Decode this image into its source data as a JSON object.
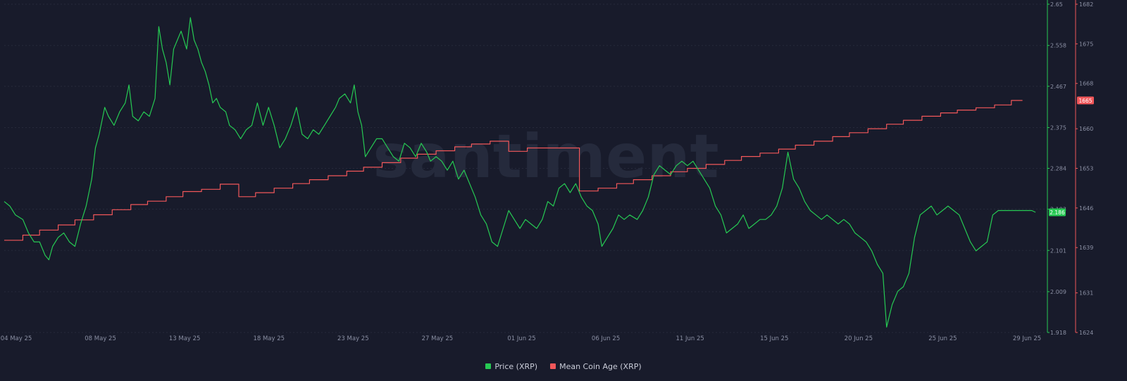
{
  "watermark": "santiment",
  "chart_data": {
    "type": "line",
    "x_ticks": [
      "04 May 25",
      "08 May 25",
      "13 May 25",
      "18 May 25",
      "23 May 25",
      "27 May 25",
      "01 Jun 25",
      "06 Jun 25",
      "11 Jun 25",
      "15 Jun 25",
      "20 Jun 25",
      "25 Jun 25",
      "29 Jun 25"
    ],
    "x_range_days": [
      0,
      56
    ],
    "series": [
      {
        "name": "Price (XRP)",
        "color": "#26c953",
        "axis": "right-inner",
        "ylim": [
          1.918,
          2.65
        ],
        "y_ticks": [
          "1.918",
          "2.009",
          "2.101",
          "2.193",
          "2.284",
          "2.375",
          "2.467",
          "2.558",
          "2.65"
        ],
        "last_value": "2.186",
        "points": [
          [
            0,
            2.21
          ],
          [
            0.3,
            2.2
          ],
          [
            0.6,
            2.18
          ],
          [
            1,
            2.17
          ],
          [
            1.3,
            2.14
          ],
          [
            1.6,
            2.12
          ],
          [
            1.9,
            2.12
          ],
          [
            2.2,
            2.09
          ],
          [
            2.4,
            2.08
          ],
          [
            2.6,
            2.11
          ],
          [
            2.9,
            2.13
          ],
          [
            3.2,
            2.14
          ],
          [
            3.5,
            2.12
          ],
          [
            3.8,
            2.11
          ],
          [
            4.1,
            2.16
          ],
          [
            4.4,
            2.2
          ],
          [
            4.7,
            2.26
          ],
          [
            4.9,
            2.33
          ],
          [
            5.1,
            2.36
          ],
          [
            5.4,
            2.42
          ],
          [
            5.6,
            2.4
          ],
          [
            5.9,
            2.38
          ],
          [
            6.2,
            2.41
          ],
          [
            6.5,
            2.43
          ],
          [
            6.7,
            2.47
          ],
          [
            6.9,
            2.4
          ],
          [
            7.2,
            2.39
          ],
          [
            7.5,
            2.41
          ],
          [
            7.8,
            2.4
          ],
          [
            8.1,
            2.44
          ],
          [
            8.3,
            2.6
          ],
          [
            8.5,
            2.55
          ],
          [
            8.7,
            2.52
          ],
          [
            8.9,
            2.47
          ],
          [
            9.1,
            2.55
          ],
          [
            9.3,
            2.57
          ],
          [
            9.5,
            2.59
          ],
          [
            9.8,
            2.55
          ],
          [
            10,
            2.62
          ],
          [
            10.2,
            2.57
          ],
          [
            10.4,
            2.55
          ],
          [
            10.6,
            2.52
          ],
          [
            10.8,
            2.5
          ],
          [
            11,
            2.47
          ],
          [
            11.2,
            2.43
          ],
          [
            11.4,
            2.44
          ],
          [
            11.6,
            2.42
          ],
          [
            11.9,
            2.41
          ],
          [
            12.1,
            2.38
          ],
          [
            12.4,
            2.37
          ],
          [
            12.7,
            2.35
          ],
          [
            13,
            2.37
          ],
          [
            13.3,
            2.38
          ],
          [
            13.6,
            2.43
          ],
          [
            13.9,
            2.38
          ],
          [
            14.2,
            2.42
          ],
          [
            14.5,
            2.38
          ],
          [
            14.8,
            2.33
          ],
          [
            15.1,
            2.35
          ],
          [
            15.4,
            2.38
          ],
          [
            15.7,
            2.42
          ],
          [
            16,
            2.36
          ],
          [
            16.3,
            2.35
          ],
          [
            16.6,
            2.37
          ],
          [
            16.9,
            2.36
          ],
          [
            17.2,
            2.38
          ],
          [
            17.5,
            2.4
          ],
          [
            17.8,
            2.42
          ],
          [
            18,
            2.44
          ],
          [
            18.3,
            2.45
          ],
          [
            18.6,
            2.43
          ],
          [
            18.8,
            2.47
          ],
          [
            19,
            2.41
          ],
          [
            19.2,
            2.38
          ],
          [
            19.4,
            2.31
          ],
          [
            19.7,
            2.33
          ],
          [
            20,
            2.35
          ],
          [
            20.3,
            2.35
          ],
          [
            20.6,
            2.33
          ],
          [
            20.9,
            2.31
          ],
          [
            21.2,
            2.3
          ],
          [
            21.5,
            2.34
          ],
          [
            21.8,
            2.33
          ],
          [
            22.1,
            2.31
          ],
          [
            22.4,
            2.34
          ],
          [
            22.7,
            2.32
          ],
          [
            22.9,
            2.3
          ],
          [
            23.2,
            2.31
          ],
          [
            23.5,
            2.3
          ],
          [
            23.8,
            2.28
          ],
          [
            24.1,
            2.3
          ],
          [
            24.4,
            2.26
          ],
          [
            24.7,
            2.28
          ],
          [
            25,
            2.25
          ],
          [
            25.3,
            2.22
          ],
          [
            25.6,
            2.18
          ],
          [
            25.9,
            2.16
          ],
          [
            26.2,
            2.12
          ],
          [
            26.5,
            2.11
          ],
          [
            26.8,
            2.15
          ],
          [
            27.1,
            2.19
          ],
          [
            27.4,
            2.17
          ],
          [
            27.7,
            2.15
          ],
          [
            28,
            2.17
          ],
          [
            28.3,
            2.16
          ],
          [
            28.6,
            2.15
          ],
          [
            28.9,
            2.17
          ],
          [
            29.2,
            2.21
          ],
          [
            29.5,
            2.2
          ],
          [
            29.8,
            2.24
          ],
          [
            30.1,
            2.25
          ],
          [
            30.4,
            2.23
          ],
          [
            30.7,
            2.25
          ],
          [
            31,
            2.22
          ],
          [
            31.3,
            2.2
          ],
          [
            31.6,
            2.19
          ],
          [
            31.9,
            2.16
          ],
          [
            32.1,
            2.11
          ],
          [
            32.4,
            2.13
          ],
          [
            32.7,
            2.15
          ],
          [
            33,
            2.18
          ],
          [
            33.3,
            2.17
          ],
          [
            33.6,
            2.18
          ],
          [
            34,
            2.17
          ],
          [
            34.3,
            2.19
          ],
          [
            34.6,
            2.22
          ],
          [
            34.9,
            2.27
          ],
          [
            35.2,
            2.29
          ],
          [
            35.5,
            2.28
          ],
          [
            35.8,
            2.27
          ],
          [
            36.1,
            2.29
          ],
          [
            36.4,
            2.3
          ],
          [
            36.7,
            2.29
          ],
          [
            37,
            2.3
          ],
          [
            37.3,
            2.28
          ],
          [
            37.6,
            2.26
          ],
          [
            37.9,
            2.24
          ],
          [
            38.2,
            2.2
          ],
          [
            38.5,
            2.18
          ],
          [
            38.8,
            2.14
          ],
          [
            39.1,
            2.15
          ],
          [
            39.4,
            2.16
          ],
          [
            39.7,
            2.18
          ],
          [
            40,
            2.15
          ],
          [
            40.3,
            2.16
          ],
          [
            40.6,
            2.17
          ],
          [
            40.9,
            2.17
          ],
          [
            41.2,
            2.18
          ],
          [
            41.5,
            2.2
          ],
          [
            41.8,
            2.24
          ],
          [
            42.1,
            2.32
          ],
          [
            42.4,
            2.26
          ],
          [
            42.7,
            2.24
          ],
          [
            43,
            2.21
          ],
          [
            43.3,
            2.19
          ],
          [
            43.6,
            2.18
          ],
          [
            43.9,
            2.17
          ],
          [
            44.2,
            2.18
          ],
          [
            44.5,
            2.17
          ],
          [
            44.8,
            2.16
          ],
          [
            45.1,
            2.17
          ],
          [
            45.4,
            2.16
          ],
          [
            45.7,
            2.14
          ],
          [
            46,
            2.13
          ],
          [
            46.3,
            2.12
          ],
          [
            46.6,
            2.1
          ],
          [
            46.9,
            2.07
          ],
          [
            47.2,
            2.05
          ],
          [
            47.4,
            1.93
          ],
          [
            47.7,
            1.98
          ],
          [
            48,
            2.01
          ],
          [
            48.3,
            2.02
          ],
          [
            48.6,
            2.05
          ],
          [
            48.9,
            2.13
          ],
          [
            49.2,
            2.18
          ],
          [
            49.5,
            2.19
          ],
          [
            49.8,
            2.2
          ],
          [
            50.1,
            2.18
          ],
          [
            50.4,
            2.19
          ],
          [
            50.7,
            2.2
          ],
          [
            51,
            2.19
          ],
          [
            51.3,
            2.18
          ],
          [
            51.6,
            2.15
          ],
          [
            51.9,
            2.12
          ],
          [
            52.2,
            2.1
          ],
          [
            52.5,
            2.11
          ],
          [
            52.8,
            2.12
          ],
          [
            53.1,
            2.18
          ],
          [
            53.4,
            2.19
          ],
          [
            53.7,
            2.19
          ],
          [
            54,
            2.19
          ],
          [
            54.3,
            2.19
          ],
          [
            54.6,
            2.19
          ],
          [
            54.9,
            2.19
          ],
          [
            55.2,
            2.19
          ],
          [
            55.4,
            2.186
          ]
        ]
      },
      {
        "name": "Mean Coin Age (XRP)",
        "color": "#f1575a",
        "axis": "right-outer",
        "ylim": [
          1624,
          1682
        ],
        "y_ticks": [
          "1624",
          "1631",
          "1639",
          "1646",
          "1653",
          "1660",
          "1668",
          "1675",
          "1682"
        ],
        "last_value": "1665",
        "points": [
          [
            0,
            1640.3
          ],
          [
            1,
            1640.3
          ],
          [
            1,
            1641.2
          ],
          [
            1.9,
            1641.2
          ],
          [
            1.9,
            1642.1
          ],
          [
            2.9,
            1642.1
          ],
          [
            2.9,
            1643.0
          ],
          [
            3.8,
            1643.0
          ],
          [
            3.8,
            1643.9
          ],
          [
            4.8,
            1643.9
          ],
          [
            4.8,
            1644.8
          ],
          [
            5.8,
            1644.8
          ],
          [
            5.8,
            1645.7
          ],
          [
            6.8,
            1645.7
          ],
          [
            6.8,
            1646.6
          ],
          [
            7.7,
            1646.6
          ],
          [
            7.7,
            1647.2
          ],
          [
            8.7,
            1647.2
          ],
          [
            8.7,
            1648.0
          ],
          [
            9.6,
            1648.0
          ],
          [
            9.6,
            1648.9
          ],
          [
            10.6,
            1648.9
          ],
          [
            10.6,
            1649.3
          ],
          [
            11.6,
            1649.3
          ],
          [
            11.6,
            1650.2
          ],
          [
            12.6,
            1650.2
          ],
          [
            12.6,
            1648.0
          ],
          [
            13.5,
            1648.0
          ],
          [
            13.5,
            1648.7
          ],
          [
            14.5,
            1648.7
          ],
          [
            14.5,
            1649.5
          ],
          [
            15.5,
            1649.5
          ],
          [
            15.5,
            1650.3
          ],
          [
            16.4,
            1650.3
          ],
          [
            16.4,
            1651.0
          ],
          [
            17.4,
            1651.0
          ],
          [
            17.4,
            1651.7
          ],
          [
            18.4,
            1651.7
          ],
          [
            18.4,
            1652.5
          ],
          [
            19.3,
            1652.5
          ],
          [
            19.3,
            1653.2
          ],
          [
            20.3,
            1653.2
          ],
          [
            20.3,
            1654.0
          ],
          [
            21.3,
            1654.0
          ],
          [
            21.3,
            1654.8
          ],
          [
            22.2,
            1654.8
          ],
          [
            22.2,
            1655.5
          ],
          [
            23.2,
            1655.5
          ],
          [
            23.2,
            1656.1
          ],
          [
            24.2,
            1656.1
          ],
          [
            24.2,
            1656.8
          ],
          [
            25.1,
            1656.8
          ],
          [
            25.1,
            1657.3
          ],
          [
            26.1,
            1657.3
          ],
          [
            26.1,
            1657.8
          ],
          [
            27.1,
            1657.8
          ],
          [
            27.1,
            1656.0
          ],
          [
            28.1,
            1656.0
          ],
          [
            28.1,
            1656.6
          ],
          [
            30.9,
            1656.6
          ],
          [
            30.9,
            1649.0
          ],
          [
            31.9,
            1649.0
          ],
          [
            31.9,
            1649.5
          ],
          [
            32.9,
            1649.5
          ],
          [
            32.9,
            1650.3
          ],
          [
            33.8,
            1650.3
          ],
          [
            33.8,
            1651.0
          ],
          [
            34.8,
            1651.0
          ],
          [
            34.8,
            1651.7
          ],
          [
            35.8,
            1651.7
          ],
          [
            35.8,
            1652.4
          ],
          [
            36.7,
            1652.4
          ],
          [
            36.7,
            1653.0
          ],
          [
            37.7,
            1653.0
          ],
          [
            37.7,
            1653.7
          ],
          [
            38.7,
            1653.7
          ],
          [
            38.7,
            1654.4
          ],
          [
            39.6,
            1654.4
          ],
          [
            39.6,
            1655.1
          ],
          [
            40.6,
            1655.1
          ],
          [
            40.6,
            1655.7
          ],
          [
            41.6,
            1655.7
          ],
          [
            41.6,
            1656.4
          ],
          [
            42.5,
            1656.4
          ],
          [
            42.5,
            1657.1
          ],
          [
            43.5,
            1657.1
          ],
          [
            43.5,
            1657.8
          ],
          [
            44.5,
            1657.8
          ],
          [
            44.5,
            1658.6
          ],
          [
            45.4,
            1658.6
          ],
          [
            45.4,
            1659.3
          ],
          [
            46.4,
            1659.3
          ],
          [
            46.4,
            1660.0
          ],
          [
            47.4,
            1660.0
          ],
          [
            47.4,
            1660.8
          ],
          [
            48.3,
            1660.8
          ],
          [
            48.3,
            1661.5
          ],
          [
            49.3,
            1661.5
          ],
          [
            49.3,
            1662.2
          ],
          [
            50.3,
            1662.2
          ],
          [
            50.3,
            1662.8
          ],
          [
            51.2,
            1662.8
          ],
          [
            51.2,
            1663.3
          ],
          [
            52.2,
            1663.3
          ],
          [
            52.2,
            1663.7
          ],
          [
            53.2,
            1663.7
          ],
          [
            53.2,
            1664.2
          ],
          [
            54.1,
            1664.2
          ],
          [
            54.1,
            1665.0
          ],
          [
            54.7,
            1665.0
          ]
        ]
      }
    ],
    "grid": true,
    "legend_position": "bottom-center"
  }
}
